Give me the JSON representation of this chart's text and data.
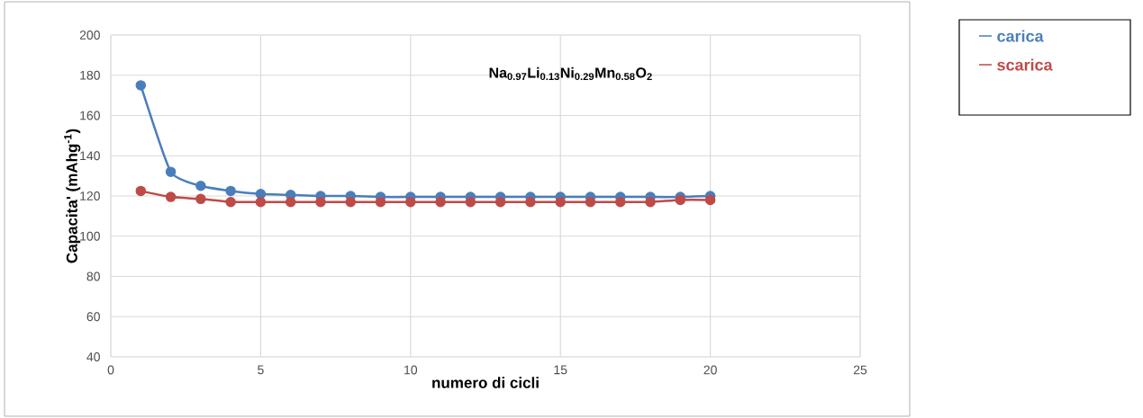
{
  "chart_data": {
    "type": "line",
    "xlabel": "numero di cicli",
    "ylabel": "Capacita' (mAhg$^{-1}$)",
    "annotations": [
      "Na$_{0.97}$Li$_{0.13}$Ni$_{0.29}$Mn$_{0.58}$O$_{2}$"
    ],
    "x": [
      1,
      2,
      3,
      4,
      5,
      6,
      7,
      8,
      9,
      10,
      11,
      12,
      13,
      14,
      15,
      16,
      17,
      18,
      19,
      20
    ],
    "series": [
      {
        "name": "carica",
        "color": "#4a7ebb",
        "values": [
          175,
          132,
          125,
          122.5,
          121,
          120.5,
          120,
          120,
          119.5,
          119.5,
          119.5,
          119.5,
          119.5,
          119.5,
          119.5,
          119.5,
          119.5,
          119.5,
          119.5,
          120
        ]
      },
      {
        "name": "scarica",
        "color": "#be4b48",
        "values": [
          122.5,
          119.5,
          118.5,
          117,
          117,
          117,
          117,
          117,
          117,
          117,
          117,
          117,
          117,
          117,
          117,
          117,
          117,
          117,
          118,
          118
        ]
      }
    ],
    "xlim": [
      0,
      25
    ],
    "xticks": [
      0,
      5,
      10,
      15,
      20,
      25
    ],
    "ylim": [
      40,
      200
    ],
    "yticks": [
      40,
      60,
      80,
      100,
      120,
      140,
      160,
      180,
      200
    ],
    "grid": true,
    "legend": "right",
    "marker": "circle",
    "line_style": "solid"
  }
}
